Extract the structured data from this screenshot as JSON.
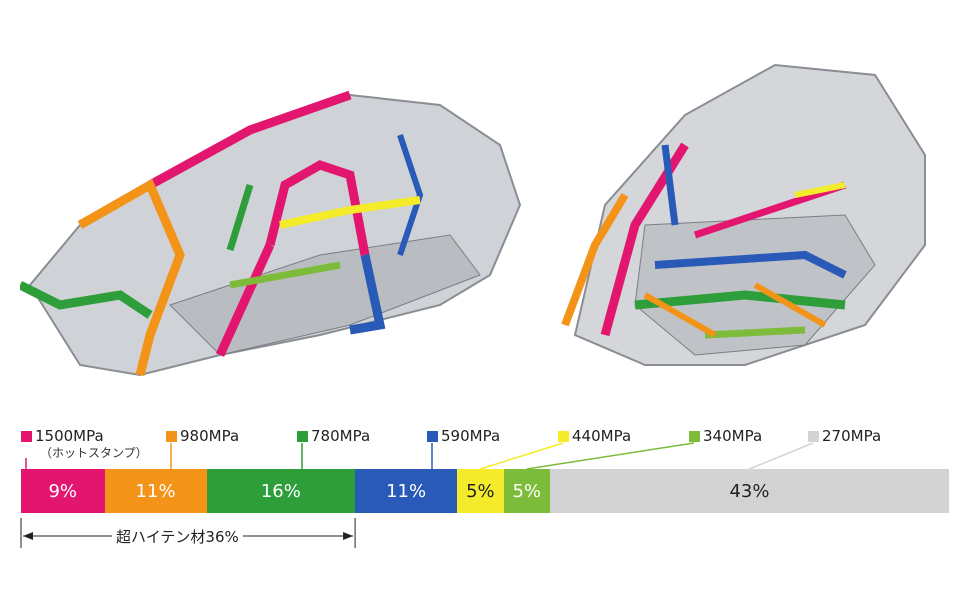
{
  "chart_data": {
    "type": "bar",
    "orientation": "horizontal-stacked",
    "unit": "%",
    "series": [
      {
        "name": "1500MPa",
        "note": "（ホットスタンプ）",
        "value": 9,
        "label": "9%",
        "color": "#e2166f"
      },
      {
        "name": "980MPa",
        "value": 11,
        "label": "11%",
        "color": "#f39419"
      },
      {
        "name": "780MPa",
        "value": 16,
        "label": "16%",
        "color": "#2d9e3a"
      },
      {
        "name": "590MPa",
        "value": 11,
        "label": "11%",
        "color": "#2a5ab8"
      },
      {
        "name": "440MPa",
        "value": 5,
        "label": "5%",
        "color": "#f4ec2a"
      },
      {
        "name": "340MPa",
        "value": 5,
        "label": "5%",
        "color": "#7dbb3a"
      },
      {
        "name": "270MPa",
        "value": 43,
        "label": "43%",
        "color": "#d3d3d3"
      }
    ],
    "annotation": {
      "text": "超ハイテン材36%",
      "value": 36
    },
    "legend": "top"
  }
}
